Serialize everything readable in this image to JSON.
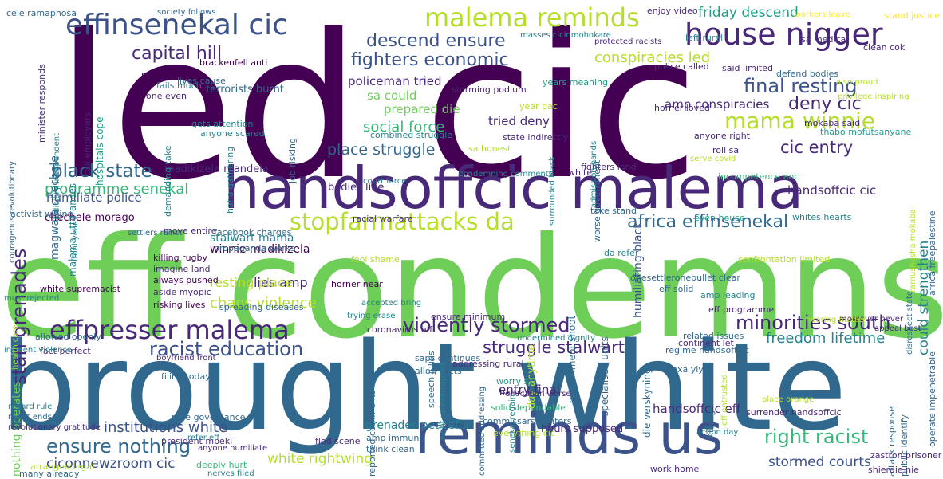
{
  "cloud": {
    "palette": {
      "purple": "#440154",
      "indigo": "#482878",
      "blue": "#3b528b",
      "slate": "#31688e",
      "teal": "#26828e",
      "sea": "#1f9e89",
      "green": "#35b779",
      "lime": "#6ece58",
      "yellow": "#b5de2b",
      "gold": "#fde725"
    },
    "words": [
      {
        "text": "led cic",
        "color": "purple"
      },
      {
        "text": "eff condemns",
        "color": "lime"
      },
      {
        "text": "brought white",
        "color": "slate"
      },
      {
        "text": "handsoffcic malema",
        "color": "indigo"
      },
      {
        "text": "reminds us",
        "color": "blue"
      },
      {
        "text": "effinsenekal cic",
        "color": "blue"
      },
      {
        "text": "malema reminds",
        "color": "yellow"
      },
      {
        "text": "house nigger",
        "color": "indigo"
      },
      {
        "text": "effpresser malema",
        "color": "indigo"
      },
      {
        "text": "stopfarmattacks da",
        "color": "yellow"
      },
      {
        "text": "mama winnie",
        "color": "yellow"
      },
      {
        "text": "violently stormed",
        "color": "indigo"
      },
      {
        "text": "final resting",
        "color": "blue"
      },
      {
        "text": "minorities south",
        "color": "indigo"
      },
      {
        "text": "racist education",
        "color": "blue"
      },
      {
        "text": "right racist",
        "color": "green"
      },
      {
        "text": "ensure nothing",
        "color": "slate"
      },
      {
        "text": "capital hill",
        "color": "indigo"
      },
      {
        "text": "descend ensure",
        "color": "blue"
      },
      {
        "text": "fighters economic",
        "color": "blue"
      },
      {
        "text": "black state",
        "color": "slate"
      },
      {
        "text": "cic entry",
        "color": "indigo"
      },
      {
        "text": "deny cic",
        "color": "indigo"
      },
      {
        "text": "africa effinsenekal",
        "color": "slate"
      },
      {
        "text": "struggle stalwart",
        "color": "indigo"
      },
      {
        "text": "stan grenades",
        "color": "indigo"
      },
      {
        "text": "conspiracies led",
        "color": "yellow"
      },
      {
        "text": "chaos violence",
        "color": "yellow"
      },
      {
        "text": "white rightwing",
        "color": "yellow"
      },
      {
        "text": "friday descend",
        "color": "sea"
      },
      {
        "text": "could strengthen",
        "color": "teal"
      },
      {
        "text": "programme senekal",
        "color": "green"
      },
      {
        "text": "social force",
        "color": "green"
      },
      {
        "text": "place struggle",
        "color": "slate"
      },
      {
        "text": "freedom lifetime",
        "color": "teal"
      },
      {
        "text": "institutions white",
        "color": "blue"
      },
      {
        "text": "stormed courts",
        "color": "blue"
      },
      {
        "text": "ciconnewzroom cic",
        "color": "blue"
      },
      {
        "text": "humiliate police",
        "color": "blue"
      },
      {
        "text": "entry final",
        "color": "indigo"
      },
      {
        "text": "handsoffcic eff",
        "color": "indigo"
      },
      {
        "text": "lies amp",
        "color": "indigo"
      },
      {
        "text": "resting place",
        "color": "yellow"
      },
      {
        "text": "tried deny",
        "color": "indigo"
      },
      {
        "text": "policeman tried",
        "color": "indigo"
      },
      {
        "text": "sa could",
        "color": "lime"
      },
      {
        "text": "prepared die",
        "color": "lime"
      },
      {
        "text": "amp conspiracies",
        "color": "indigo"
      },
      {
        "text": "handsoffcic cic",
        "color": "indigo"
      },
      {
        "text": "humiliating black",
        "color": "blue"
      },
      {
        "text": "nothing operates",
        "color": "lime"
      },
      {
        "text": "magwala chechele",
        "color": "slate"
      },
      {
        "text": "madikizela mandela",
        "color": "indigo"
      },
      {
        "text": "bodies line",
        "color": "indigo"
      },
      {
        "text": "winnie madikizela",
        "color": "purple"
      },
      {
        "text": "stalwart mama",
        "color": "teal"
      },
      {
        "text": "grenades peaceful",
        "color": "teal"
      },
      {
        "text": "hours supposed",
        "color": "indigo"
      },
      {
        "text": "chechele morago",
        "color": "purple"
      },
      {
        "text": "terrorists burnt",
        "color": "slate"
      },
      {
        "text": "cele ramaphosa",
        "color": "slate"
      },
      {
        "text": "society follows",
        "color": "slate"
      },
      {
        "text": "minister responds",
        "color": "indigo"
      },
      {
        "text": "malema utterances",
        "color": "teal"
      },
      {
        "text": "judiciary independent",
        "color": "teal"
      },
      {
        "text": "call employers",
        "color": "indigo"
      },
      {
        "text": "hospitals cope",
        "color": "sea"
      },
      {
        "text": "courageous revolutionary",
        "color": "slate"
      },
      {
        "text": "lives cause",
        "color": "slate"
      },
      {
        "text": "brackenfell anti",
        "color": "purple"
      },
      {
        "text": "missed cic",
        "color": "purple"
      },
      {
        "text": "fails much",
        "color": "teal"
      },
      {
        "text": "one even",
        "color": "indigo"
      },
      {
        "text": "gets attention",
        "color": "teal"
      },
      {
        "text": "anyone scared",
        "color": "teal"
      },
      {
        "text": "killing rugby",
        "color": "purple"
      },
      {
        "text": "imagine land",
        "color": "indigo"
      },
      {
        "text": "always pushed",
        "color": "purple"
      },
      {
        "text": "aside myopic",
        "color": "indigo"
      },
      {
        "text": "risking lives",
        "color": "purple"
      },
      {
        "text": "white supremacist",
        "color": "purple"
      },
      {
        "text": "move entire",
        "color": "indigo"
      },
      {
        "text": "facebook charges",
        "color": "slate"
      },
      {
        "text": "propaganda works",
        "color": "slate"
      },
      {
        "text": "fool shame",
        "color": "yellow"
      },
      {
        "text": "horner near",
        "color": "purple"
      },
      {
        "text": "spreading diseases",
        "color": "slate"
      },
      {
        "text": "coronavirus eff",
        "color": "indigo"
      },
      {
        "text": "ensure minimum",
        "color": "indigo"
      },
      {
        "text": "fact perfect",
        "color": "indigo"
      },
      {
        "text": "allowed openly",
        "color": "slate"
      },
      {
        "text": "filing today",
        "color": "slate"
      },
      {
        "text": "race governance",
        "color": "slate"
      },
      {
        "text": "president mbeki",
        "color": "indigo"
      },
      {
        "text": "fled scene",
        "color": "indigo"
      },
      {
        "text": "deeply hurt",
        "color": "green"
      },
      {
        "text": "think clean",
        "color": "slate"
      },
      {
        "text": "amp immune",
        "color": "slate"
      },
      {
        "text": "commissars fighters",
        "color": "slate"
      },
      {
        "text": "solid dependable",
        "color": "green"
      },
      {
        "text": "bath go",
        "color": "indigo"
      },
      {
        "text": "worry sa",
        "color": "sea"
      },
      {
        "text": "nxa yiyo",
        "color": "slate"
      },
      {
        "text": "surrender handsoffcic",
        "color": "indigo"
      },
      {
        "text": "regime handsoffcic",
        "color": "slate"
      },
      {
        "text": "related issues",
        "color": "slate"
      },
      {
        "text": "continent let",
        "color": "indigo"
      },
      {
        "text": "eff programme",
        "color": "indigo"
      },
      {
        "text": "eff solid",
        "color": "slate"
      },
      {
        "text": "amp leading",
        "color": "teal"
      },
      {
        "text": "whites hearts",
        "color": "teal"
      },
      {
        "text": "even house",
        "color": "sea"
      },
      {
        "text": "take stand",
        "color": "slate"
      },
      {
        "text": "racial warfare",
        "color": "indigo"
      },
      {
        "text": "da refer",
        "color": "teal"
      },
      {
        "text": "confrontation limited",
        "color": "yellow"
      },
      {
        "text": "onesettleronebullet clear",
        "color": "slate"
      },
      {
        "text": "incompetence anc",
        "color": "green"
      },
      {
        "text": "roll sa",
        "color": "indigo"
      },
      {
        "text": "fighters land",
        "color": "indigo"
      },
      {
        "text": "anyone right",
        "color": "indigo"
      },
      {
        "text": "mokaba said",
        "color": "indigo"
      },
      {
        "text": "thabo mofutsanyane",
        "color": "sea"
      },
      {
        "text": "horner loved",
        "color": "indigo"
      },
      {
        "text": "police called",
        "color": "indigo"
      },
      {
        "text": "said limited",
        "color": "indigo"
      },
      {
        "text": "defend bodies",
        "color": "slate"
      },
      {
        "text": "clean cok",
        "color": "indigo"
      },
      {
        "text": "sa medical",
        "color": "indigo"
      },
      {
        "text": "left rural",
        "color": "teal"
      },
      {
        "text": "enjoy video",
        "color": "indigo"
      },
      {
        "text": "stand justice",
        "color": "gold"
      },
      {
        "text": "years meaning",
        "color": "sea"
      },
      {
        "text": "storming podium",
        "color": "indigo"
      },
      {
        "text": "year pac",
        "color": "yellow"
      },
      {
        "text": "state indirectly",
        "color": "indigo"
      },
      {
        "text": "combined struggle",
        "color": "teal"
      },
      {
        "text": "sa honest",
        "color": "yellow"
      },
      {
        "text": "allow facts",
        "color": "slate"
      },
      {
        "text": "saps continues",
        "color": "slate"
      },
      {
        "text": "addressing rural",
        "color": "indigo"
      },
      {
        "text": "white",
        "color": "indigo"
      },
      {
        "text": "job risking",
        "color": "slate"
      },
      {
        "text": "demanding take",
        "color": "teal"
      },
      {
        "text": "haha gathering",
        "color": "teal"
      },
      {
        "text": "arranged legal",
        "color": "yellow"
      },
      {
        "text": "many already",
        "color": "slate"
      },
      {
        "text": "activist willing",
        "color": "slate"
      },
      {
        "text": "front year",
        "color": "teal"
      },
      {
        "text": "specialised units",
        "color": "slate"
      },
      {
        "text": "die verskyning",
        "color": "slate"
      },
      {
        "text": "killing children",
        "color": "slate"
      },
      {
        "text": "day anytime",
        "color": "yellow"
      },
      {
        "text": "speech julius",
        "color": "slate"
      },
      {
        "text": "attack response",
        "color": "slate"
      },
      {
        "text": "public identify",
        "color": "slate"
      },
      {
        "text": "operate impenetrable",
        "color": "slate"
      },
      {
        "text": "africa freepalestine",
        "color": "slate"
      },
      {
        "text": "worse government",
        "color": "slate"
      },
      {
        "text": "government shoot",
        "color": "slate"
      },
      {
        "text": "reported comments",
        "color": "slate"
      },
      {
        "text": "shierdie nie",
        "color": "indigo"
      },
      {
        "text": "zastron prisoner",
        "color": "indigo"
      },
      {
        "text": "work home",
        "color": "indigo"
      },
      {
        "text": "everything cic",
        "color": "yellow"
      },
      {
        "text": "regard rule",
        "color": "teal"
      },
      {
        "text": "racist ends",
        "color": "slate"
      },
      {
        "text": "revolutionary gratitude",
        "color": "indigo"
      },
      {
        "text": "refer eff",
        "color": "teal"
      },
      {
        "text": "anyone humiliate",
        "color": "indigo"
      },
      {
        "text": "nerves filed",
        "color": "teal"
      },
      {
        "text": "place orange",
        "color": "yellow"
      },
      {
        "text": "action day",
        "color": "teal"
      },
      {
        "text": "education worse",
        "color": "indigo"
      },
      {
        "text": "committed addressing",
        "color": "slate"
      },
      {
        "text": "moreover never",
        "color": "indigo"
      },
      {
        "text": "appeal best",
        "color": "indigo"
      },
      {
        "text": "hearing matter",
        "color": "yellow"
      },
      {
        "text": "disrespect state",
        "color": "slate"
      },
      {
        "text": "ramushosha mokaba",
        "color": "yellow"
      },
      {
        "text": "masses cicinmohokare",
        "color": "teal"
      },
      {
        "text": "protected racists",
        "color": "indigo"
      },
      {
        "text": "workers leave",
        "color": "gold"
      },
      {
        "text": "serve covid",
        "color": "yellow"
      },
      {
        "text": "privilege inspiring",
        "color": "yellow"
      },
      {
        "text": "also proud",
        "color": "yellow"
      },
      {
        "text": "surrounded black",
        "color": "teal"
      },
      {
        "text": "condemning comments",
        "color": "teal"
      },
      {
        "text": "admission hands",
        "color": "teal"
      },
      {
        "text": "court force",
        "color": "teal"
      },
      {
        "text": "settlers racist",
        "color": "slate"
      },
      {
        "text": "incident violence",
        "color": "teal"
      },
      {
        "text": "must rejected",
        "color": "teal"
      },
      {
        "text": "boyfriend front",
        "color": "indigo"
      },
      {
        "text": "accepted bring",
        "color": "teal"
      },
      {
        "text": "trying erase",
        "color": "teal"
      },
      {
        "text": "undermined dignity",
        "color": "teal"
      },
      {
        "text": "senekal regain",
        "color": "teal"
      },
      {
        "text": "went uninterrupted",
        "color": "teal"
      },
      {
        "text": "eff entrusted",
        "color": "yellow"
      },
      {
        "text": "health care",
        "color": "yellow"
      }
    ]
  }
}
